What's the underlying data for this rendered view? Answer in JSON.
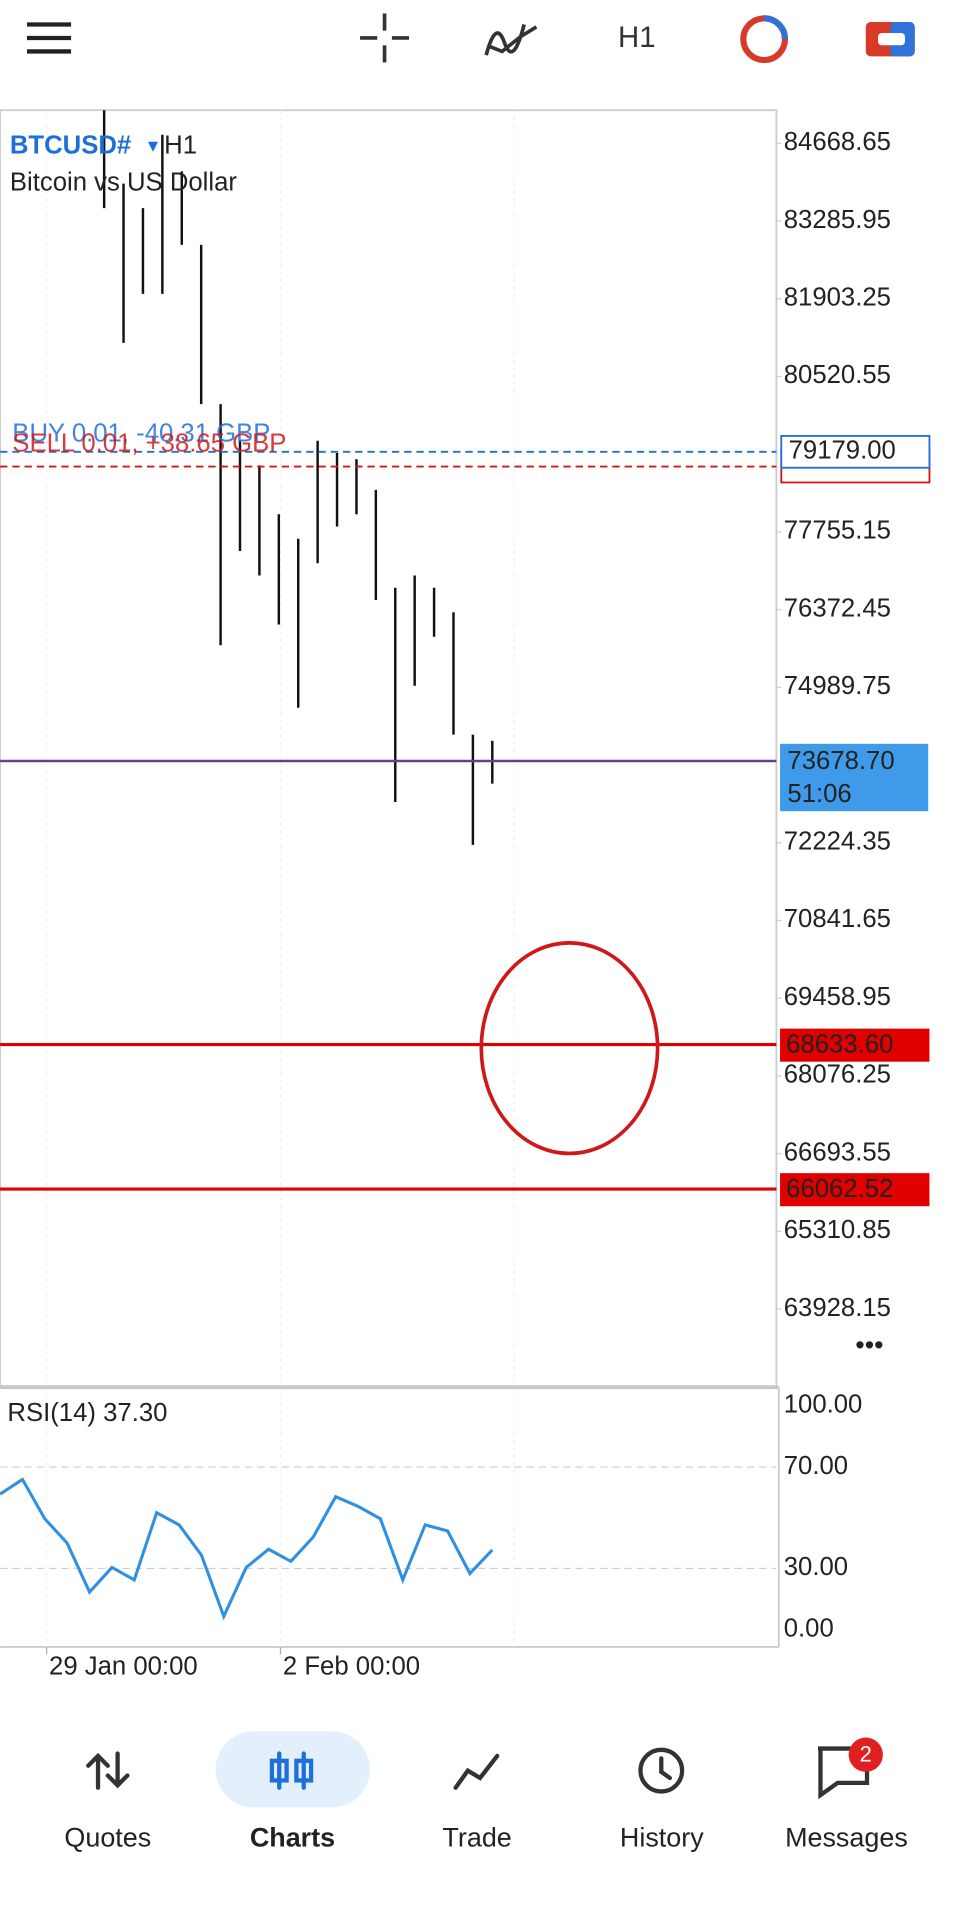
{
  "toolbar": {
    "timeframe": "H1"
  },
  "chart": {
    "symbol": "BTCUSD#",
    "timeframe": "H1",
    "description": "Bitcoin vs US Dollar",
    "ylim": [
      62556.6,
      85256.85
    ],
    "yticks": [
      84668.65,
      83285.95,
      81903.25,
      80520.55,
      77755.15,
      76372.45,
      74989.75,
      72224.35,
      70841.65,
      69458.95,
      68076.25,
      66693.55,
      65310.85,
      63928.15
    ],
    "candles": {
      "highs": [
        85257,
        83950,
        83514,
        84821,
        84168,
        82860,
        80028,
        79375,
        78939,
        78068,
        77632,
        79375,
        79157,
        79048,
        78503,
        76761,
        76979,
        76761,
        76325,
        74147,
        74038
      ],
      "lows": [
        83514,
        81117,
        81989,
        81989,
        82860,
        80028,
        75737,
        77414,
        76979,
        76107,
        74626,
        77196,
        77850,
        78068,
        76543,
        72949,
        75018,
        75889,
        74147,
        72186,
        73276
      ]
    },
    "orders": [
      {
        "label": "BUY 0.01, -40.31 GBP",
        "price": {
          "value": 79179,
          "label": "79179.00"
        },
        "color": "#1e6fd9"
      },
      {
        "label": "SELL 0.01, +38.65 GBP",
        "price": 78917,
        "color": "#d01818"
      }
    ],
    "current_price": {
      "value": 73678.7,
      "label": "73678.70"
    },
    "countdown": "51:06",
    "levels": [
      {
        "value": 68633.6,
        "label": "68633.60"
      },
      66062.52
    ],
    "level_color": "#e00000",
    "rsi": {
      "label": "RSI(14) 37.30",
      "ylim": [
        0,
        100
      ],
      "yticks": [
        {
          "value": 100,
          "label": "100.00"
        },
        {
          "value": 70,
          "label": "70.00"
        },
        {
          "value": 30,
          "label": "30.00"
        },
        {
          "value": 0,
          "label": "0.00"
        }
      ],
      "color": "#2f8fe0",
      "values": [
        59.3,
        65.1,
        49.6,
        40.0,
        20.7,
        30.4,
        25.5,
        52.0,
        47.2,
        35.2,
        11.1,
        30.4,
        37.6,
        32.8,
        42.4,
        58.3,
        54.5,
        49.6,
        25.5,
        47.2,
        44.8,
        28.0,
        37.3
      ]
    },
    "time_labels": [
      "29 Jan 00:00",
      "2 Feb 00:00"
    ]
  },
  "nav": {
    "items": [
      "Quotes",
      "Charts",
      "Trade",
      "History",
      "Messages"
    ],
    "active": 1,
    "badge": 2
  }
}
